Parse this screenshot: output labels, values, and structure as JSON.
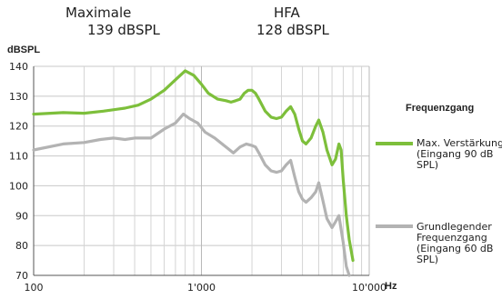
{
  "header": {
    "maximale_label": "Maximale",
    "maximale_value": "139 dBSPL",
    "hfa_label": "HFA",
    "hfa_value": "128 dBSPL"
  },
  "legend": {
    "title": "Frequenzgang",
    "items": [
      {
        "label": "Max. Verstärkung (Eingang 90 dB SPL)",
        "color": "#7dbf3b"
      },
      {
        "label": "Grundlegender Frequenzgang (Eingang 60 dB SPL)",
        "color": "#b3b3b3"
      }
    ]
  },
  "chart_data": {
    "type": "line",
    "xscale": "log",
    "xlim": [
      100,
      10000
    ],
    "ylim": [
      70,
      140
    ],
    "yticks": [
      70,
      80,
      90,
      100,
      110,
      120,
      130,
      140
    ],
    "xticks": [
      100,
      1000,
      10000
    ],
    "xtick_labels": [
      "100",
      "1'000",
      "10'000"
    ],
    "xlabel": "Hz",
    "ylabel": "dBSPL",
    "grid": true,
    "series": [
      {
        "name": "Max. Verstärkung (Eingang 90 dB SPL)",
        "color": "#7dbf3b",
        "points": [
          [
            100,
            124
          ],
          [
            150,
            124.5
          ],
          [
            200,
            124.3
          ],
          [
            260,
            125
          ],
          [
            350,
            126
          ],
          [
            420,
            127
          ],
          [
            500,
            129
          ],
          [
            600,
            132
          ],
          [
            700,
            135.5
          ],
          [
            800,
            138.5
          ],
          [
            900,
            137
          ],
          [
            1000,
            134
          ],
          [
            1100,
            131
          ],
          [
            1250,
            129
          ],
          [
            1400,
            128.5
          ],
          [
            1500,
            128
          ],
          [
            1600,
            128.5
          ],
          [
            1700,
            129
          ],
          [
            1800,
            131
          ],
          [
            1900,
            132
          ],
          [
            2000,
            132
          ],
          [
            2100,
            131
          ],
          [
            2200,
            129
          ],
          [
            2400,
            125
          ],
          [
            2600,
            123
          ],
          [
            2800,
            122.5
          ],
          [
            3000,
            123
          ],
          [
            3200,
            125
          ],
          [
            3400,
            126.5
          ],
          [
            3600,
            124
          ],
          [
            3800,
            119
          ],
          [
            4000,
            115
          ],
          [
            4200,
            114
          ],
          [
            4500,
            116
          ],
          [
            4800,
            120
          ],
          [
            5000,
            122
          ],
          [
            5300,
            118
          ],
          [
            5600,
            112
          ],
          [
            6000,
            107
          ],
          [
            6300,
            109
          ],
          [
            6600,
            114
          ],
          [
            6800,
            112
          ],
          [
            7000,
            102
          ],
          [
            7300,
            90
          ],
          [
            7600,
            82
          ],
          [
            8000,
            75
          ]
        ]
      },
      {
        "name": "Grundlegender Frequenzgang (Eingang 60 dB SPL)",
        "color": "#b3b3b3",
        "points": [
          [
            100,
            112
          ],
          [
            150,
            114
          ],
          [
            200,
            114.5
          ],
          [
            250,
            115.5
          ],
          [
            300,
            116
          ],
          [
            350,
            115.5
          ],
          [
            400,
            116
          ],
          [
            500,
            116
          ],
          [
            600,
            119
          ],
          [
            700,
            121
          ],
          [
            780,
            124
          ],
          [
            850,
            122.5
          ],
          [
            950,
            121
          ],
          [
            1050,
            118
          ],
          [
            1200,
            116
          ],
          [
            1400,
            113
          ],
          [
            1550,
            111
          ],
          [
            1700,
            113
          ],
          [
            1850,
            114
          ],
          [
            2000,
            113.5
          ],
          [
            2100,
            113
          ],
          [
            2200,
            111
          ],
          [
            2400,
            107
          ],
          [
            2600,
            105
          ],
          [
            2800,
            104.5
          ],
          [
            3000,
            105
          ],
          [
            3200,
            107
          ],
          [
            3400,
            108.5
          ],
          [
            3600,
            103
          ],
          [
            3800,
            98
          ],
          [
            4000,
            95.5
          ],
          [
            4200,
            94.5
          ],
          [
            4500,
            96
          ],
          [
            4800,
            98
          ],
          [
            5000,
            101
          ],
          [
            5300,
            95
          ],
          [
            5600,
            89
          ],
          [
            6000,
            86
          ],
          [
            6300,
            88
          ],
          [
            6600,
            90
          ],
          [
            7000,
            81
          ],
          [
            7300,
            73
          ],
          [
            7600,
            70
          ]
        ]
      }
    ]
  }
}
